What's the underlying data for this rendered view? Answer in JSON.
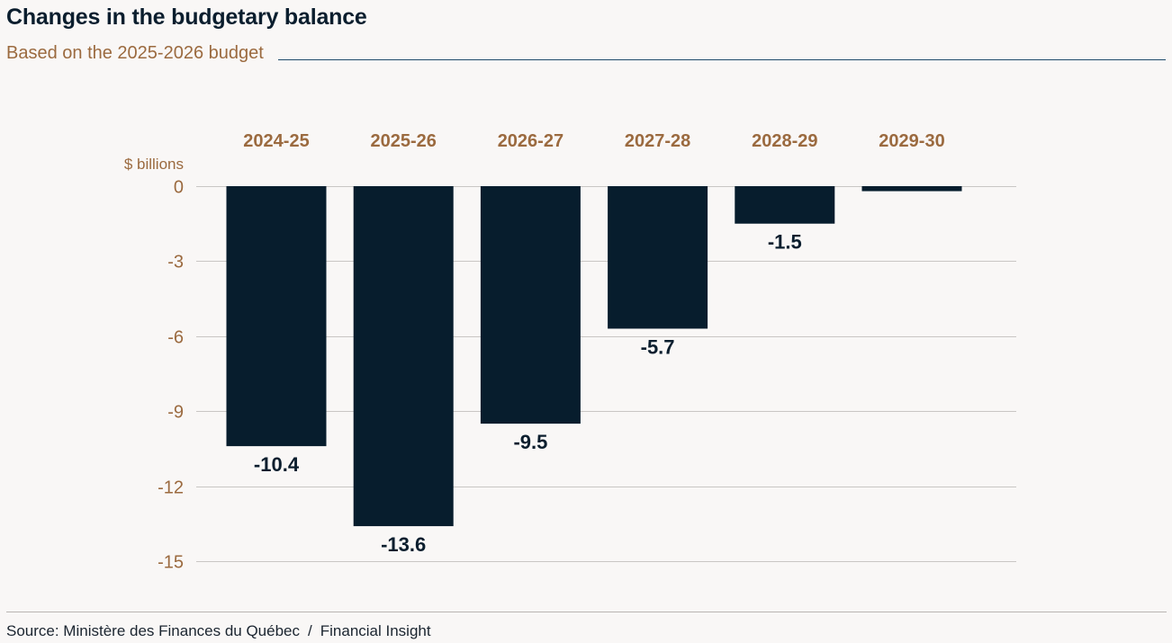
{
  "header": {
    "title": "Changes in the budgetary balance",
    "subtitle": "Based on the 2025-2026 budget"
  },
  "footer": {
    "source": "Source: Ministère des Finances du Québec",
    "separator": "/",
    "publisher": "Financial Insight"
  },
  "colors": {
    "bar": "#071d2d",
    "accent": "#9b6a3f",
    "grid": "#c9c6c4",
    "label": "#0b1e2e"
  },
  "chart_data": {
    "type": "bar",
    "title": "Changes in the budgetary balance",
    "subtitle": "Based on the 2025-2026 budget",
    "ylabel": "$ billions",
    "xlabel": "",
    "categories": [
      "2024-25",
      "2025-26",
      "2026-27",
      "2027-28",
      "2028-29",
      "2029-30"
    ],
    "values": [
      -10.4,
      -13.6,
      -9.5,
      -5.7,
      -1.5,
      -0.2
    ],
    "data_labels": [
      "-10.4",
      "-13.6",
      "-9.5",
      "-5.7",
      "-1.5",
      ""
    ],
    "yticks": [
      0,
      -3,
      -6,
      -9,
      -12,
      -15
    ],
    "ylim": [
      -15,
      0
    ],
    "grid": true,
    "category_axis_position": "top",
    "legend": "none"
  }
}
